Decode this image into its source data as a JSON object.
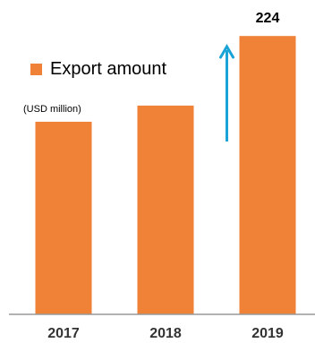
{
  "chart_data": {
    "type": "bar",
    "categories": [
      "2017",
      "2018",
      "2019"
    ],
    "series": [
      {
        "name": "Export amount",
        "values": [
          155,
          168,
          224
        ],
        "color": "#ef8237"
      }
    ],
    "data_labels": {
      "2019": "224"
    },
    "unit": "(USD million)",
    "ylim": [
      0,
      240
    ],
    "axis_color": "#999999",
    "arrow_color": "#1aa3d6",
    "grid": false,
    "legend_position": "top-left"
  }
}
